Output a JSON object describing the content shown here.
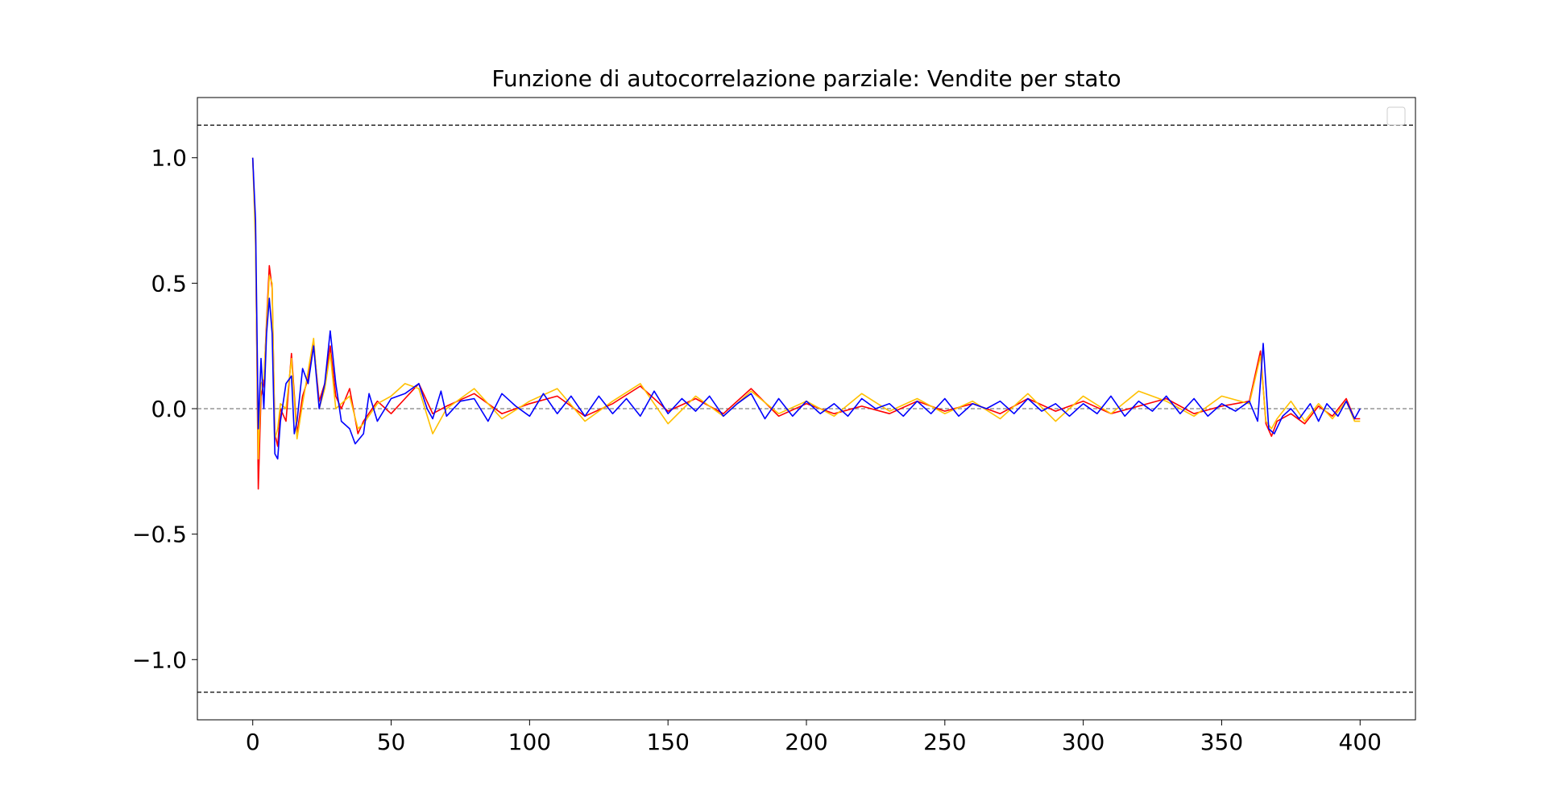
{
  "chart_data": {
    "type": "line",
    "title": "Funzione di autocorrelazione parziale: Vendite per stato",
    "xlabel": "",
    "ylabel": "",
    "xlim": [
      -20,
      420
    ],
    "ylim": [
      -1.24,
      1.24
    ],
    "x_ticks": [
      0,
      50,
      100,
      150,
      200,
      250,
      300,
      350,
      400
    ],
    "x_tick_labels": [
      "0",
      "50",
      "100",
      "150",
      "200",
      "250",
      "300",
      "350",
      "400"
    ],
    "y_ticks": [
      -1.0,
      -0.5,
      0.0,
      0.5,
      1.0
    ],
    "y_tick_labels": [
      "−1.0",
      "−0.5",
      "0.0",
      "0.5",
      "1.0"
    ],
    "grid": false,
    "legend": {
      "position": "top-right",
      "entries": []
    },
    "reference_lines": [
      {
        "y": 1.13,
        "style": "dashed",
        "color": "#000000"
      },
      {
        "y": 0.0,
        "style": "dashed",
        "color": "#808080"
      },
      {
        "y": -1.13,
        "style": "dashed",
        "color": "#000000"
      }
    ],
    "series": [
      {
        "color": "#ff0000",
        "points": [
          [
            0,
            1.0
          ],
          [
            1,
            0.7
          ],
          [
            2,
            -0.32
          ],
          [
            3,
            0.05
          ],
          [
            4,
            0.1
          ],
          [
            5,
            0.35
          ],
          [
            6,
            0.57
          ],
          [
            7,
            0.48
          ],
          [
            8,
            -0.1
          ],
          [
            9,
            -0.15
          ],
          [
            10,
            0.0
          ],
          [
            12,
            -0.05
          ],
          [
            14,
            0.22
          ],
          [
            16,
            -0.1
          ],
          [
            18,
            0.05
          ],
          [
            20,
            0.12
          ],
          [
            22,
            0.26
          ],
          [
            24,
            0.03
          ],
          [
            26,
            0.1
          ],
          [
            28,
            0.25
          ],
          [
            30,
            0.05
          ],
          [
            32,
            0.0
          ],
          [
            35,
            0.08
          ],
          [
            38,
            -0.1
          ],
          [
            40,
            -0.05
          ],
          [
            45,
            0.03
          ],
          [
            50,
            -0.02
          ],
          [
            55,
            0.04
          ],
          [
            60,
            0.1
          ],
          [
            65,
            -0.02
          ],
          [
            70,
            0.01
          ],
          [
            80,
            0.06
          ],
          [
            90,
            -0.02
          ],
          [
            100,
            0.02
          ],
          [
            110,
            0.05
          ],
          [
            120,
            -0.03
          ],
          [
            130,
            0.02
          ],
          [
            140,
            0.09
          ],
          [
            150,
            -0.01
          ],
          [
            160,
            0.04
          ],
          [
            170,
            -0.02
          ],
          [
            180,
            0.08
          ],
          [
            190,
            -0.03
          ],
          [
            200,
            0.02
          ],
          [
            210,
            -0.02
          ],
          [
            220,
            0.01
          ],
          [
            230,
            -0.02
          ],
          [
            240,
            0.03
          ],
          [
            250,
            -0.01
          ],
          [
            260,
            0.02
          ],
          [
            270,
            -0.02
          ],
          [
            280,
            0.04
          ],
          [
            290,
            -0.01
          ],
          [
            300,
            0.03
          ],
          [
            310,
            -0.02
          ],
          [
            320,
            0.01
          ],
          [
            330,
            0.04
          ],
          [
            340,
            -0.02
          ],
          [
            350,
            0.01
          ],
          [
            360,
            0.03
          ],
          [
            364,
            0.23
          ],
          [
            366,
            -0.06
          ],
          [
            368,
            -0.11
          ],
          [
            370,
            -0.05
          ],
          [
            375,
            -0.02
          ],
          [
            380,
            -0.06
          ],
          [
            385,
            0.01
          ],
          [
            390,
            -0.03
          ],
          [
            395,
            0.04
          ],
          [
            398,
            -0.04
          ],
          [
            400,
            -0.04
          ]
        ]
      },
      {
        "color": "#ffc000",
        "points": [
          [
            0,
            1.0
          ],
          [
            1,
            0.65
          ],
          [
            2,
            -0.2
          ],
          [
            3,
            0.1
          ],
          [
            4,
            0.12
          ],
          [
            5,
            0.33
          ],
          [
            6,
            0.53
          ],
          [
            7,
            0.5
          ],
          [
            8,
            -0.12
          ],
          [
            9,
            -0.08
          ],
          [
            10,
            0.02
          ],
          [
            12,
            0.0
          ],
          [
            14,
            0.2
          ],
          [
            16,
            -0.12
          ],
          [
            18,
            0.02
          ],
          [
            20,
            0.15
          ],
          [
            22,
            0.28
          ],
          [
            24,
            0.0
          ],
          [
            26,
            0.08
          ],
          [
            28,
            0.22
          ],
          [
            30,
            0.0
          ],
          [
            32,
            0.02
          ],
          [
            35,
            0.05
          ],
          [
            38,
            -0.08
          ],
          [
            40,
            -0.06
          ],
          [
            45,
            0.02
          ],
          [
            50,
            0.05
          ],
          [
            55,
            0.1
          ],
          [
            60,
            0.08
          ],
          [
            65,
            -0.1
          ],
          [
            70,
            0.0
          ],
          [
            80,
            0.08
          ],
          [
            90,
            -0.04
          ],
          [
            100,
            0.03
          ],
          [
            110,
            0.08
          ],
          [
            120,
            -0.05
          ],
          [
            130,
            0.03
          ],
          [
            140,
            0.1
          ],
          [
            150,
            -0.06
          ],
          [
            160,
            0.05
          ],
          [
            170,
            -0.03
          ],
          [
            180,
            0.07
          ],
          [
            190,
            -0.02
          ],
          [
            200,
            0.03
          ],
          [
            210,
            -0.03
          ],
          [
            220,
            0.06
          ],
          [
            230,
            -0.01
          ],
          [
            240,
            0.04
          ],
          [
            250,
            -0.02
          ],
          [
            260,
            0.03
          ],
          [
            270,
            -0.04
          ],
          [
            280,
            0.06
          ],
          [
            290,
            -0.05
          ],
          [
            300,
            0.05
          ],
          [
            310,
            -0.02
          ],
          [
            320,
            0.07
          ],
          [
            330,
            0.03
          ],
          [
            340,
            -0.03
          ],
          [
            350,
            0.05
          ],
          [
            360,
            0.02
          ],
          [
            364,
            0.21
          ],
          [
            366,
            -0.05
          ],
          [
            368,
            -0.08
          ],
          [
            370,
            -0.04
          ],
          [
            375,
            0.03
          ],
          [
            380,
            -0.05
          ],
          [
            385,
            0.02
          ],
          [
            390,
            -0.04
          ],
          [
            395,
            0.03
          ],
          [
            398,
            -0.05
          ],
          [
            400,
            -0.05
          ]
        ]
      },
      {
        "color": "#0000ff",
        "points": [
          [
            0,
            1.0
          ],
          [
            1,
            0.75
          ],
          [
            2,
            -0.08
          ],
          [
            3,
            0.2
          ],
          [
            4,
            0.0
          ],
          [
            5,
            0.3
          ],
          [
            6,
            0.44
          ],
          [
            7,
            0.3
          ],
          [
            8,
            -0.18
          ],
          [
            9,
            -0.2
          ],
          [
            10,
            -0.05
          ],
          [
            12,
            0.1
          ],
          [
            14,
            0.13
          ],
          [
            15,
            -0.1
          ],
          [
            16,
            -0.05
          ],
          [
            18,
            0.16
          ],
          [
            20,
            0.1
          ],
          [
            22,
            0.25
          ],
          [
            24,
            0.0
          ],
          [
            26,
            0.1
          ],
          [
            28,
            0.31
          ],
          [
            30,
            0.1
          ],
          [
            32,
            -0.05
          ],
          [
            35,
            -0.08
          ],
          [
            37,
            -0.14
          ],
          [
            40,
            -0.1
          ],
          [
            42,
            0.06
          ],
          [
            45,
            -0.05
          ],
          [
            50,
            0.04
          ],
          [
            55,
            0.06
          ],
          [
            60,
            0.1
          ],
          [
            63,
            0.0
          ],
          [
            65,
            -0.04
          ],
          [
            68,
            0.07
          ],
          [
            70,
            -0.03
          ],
          [
            75,
            0.03
          ],
          [
            80,
            0.04
          ],
          [
            85,
            -0.05
          ],
          [
            90,
            0.06
          ],
          [
            95,
            0.01
          ],
          [
            100,
            -0.03
          ],
          [
            105,
            0.06
          ],
          [
            110,
            -0.02
          ],
          [
            115,
            0.05
          ],
          [
            120,
            -0.03
          ],
          [
            125,
            0.05
          ],
          [
            130,
            -0.02
          ],
          [
            135,
            0.04
          ],
          [
            140,
            -0.03
          ],
          [
            145,
            0.07
          ],
          [
            150,
            -0.02
          ],
          [
            155,
            0.04
          ],
          [
            160,
            -0.01
          ],
          [
            165,
            0.05
          ],
          [
            170,
            -0.03
          ],
          [
            175,
            0.02
          ],
          [
            180,
            0.06
          ],
          [
            185,
            -0.04
          ],
          [
            190,
            0.04
          ],
          [
            195,
            -0.03
          ],
          [
            200,
            0.03
          ],
          [
            205,
            -0.02
          ],
          [
            210,
            0.02
          ],
          [
            215,
            -0.03
          ],
          [
            220,
            0.04
          ],
          [
            225,
            0.0
          ],
          [
            230,
            0.02
          ],
          [
            235,
            -0.03
          ],
          [
            240,
            0.03
          ],
          [
            245,
            -0.02
          ],
          [
            250,
            0.04
          ],
          [
            255,
            -0.03
          ],
          [
            260,
            0.02
          ],
          [
            265,
            0.0
          ],
          [
            270,
            0.03
          ],
          [
            275,
            -0.02
          ],
          [
            280,
            0.04
          ],
          [
            285,
            -0.01
          ],
          [
            290,
            0.02
          ],
          [
            295,
            -0.03
          ],
          [
            300,
            0.02
          ],
          [
            305,
            -0.02
          ],
          [
            310,
            0.05
          ],
          [
            315,
            -0.03
          ],
          [
            320,
            0.03
          ],
          [
            325,
            -0.01
          ],
          [
            330,
            0.05
          ],
          [
            335,
            -0.02
          ],
          [
            340,
            0.04
          ],
          [
            345,
            -0.03
          ],
          [
            350,
            0.02
          ],
          [
            355,
            -0.01
          ],
          [
            360,
            0.03
          ],
          [
            363,
            -0.05
          ],
          [
            365,
            0.26
          ],
          [
            367,
            -0.08
          ],
          [
            369,
            -0.1
          ],
          [
            372,
            -0.03
          ],
          [
            375,
            0.0
          ],
          [
            378,
            -0.04
          ],
          [
            382,
            0.02
          ],
          [
            385,
            -0.05
          ],
          [
            388,
            0.02
          ],
          [
            392,
            -0.03
          ],
          [
            395,
            0.03
          ],
          [
            398,
            -0.04
          ],
          [
            400,
            0.0
          ]
        ]
      }
    ]
  }
}
